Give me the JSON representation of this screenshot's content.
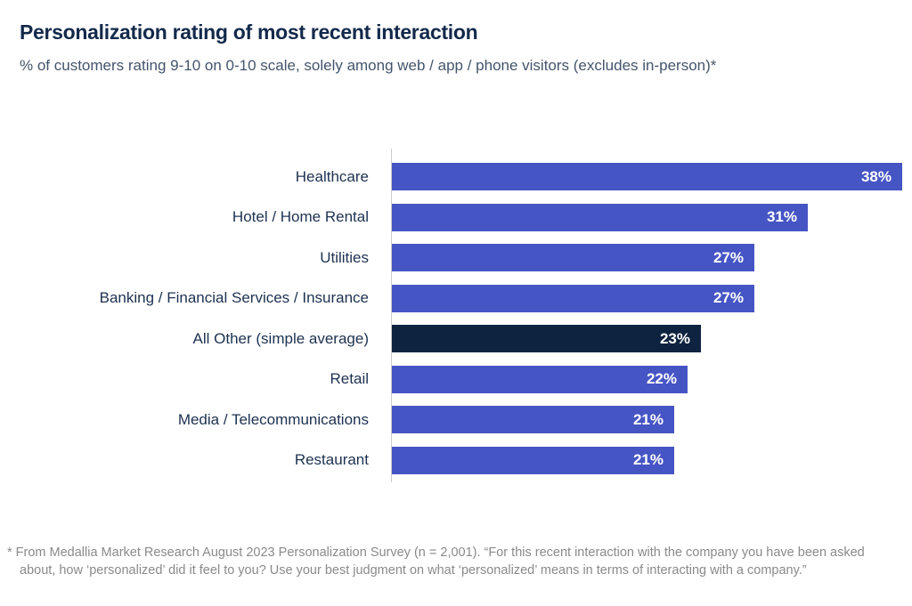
{
  "header": {
    "title": "Personalization rating of most recent interaction",
    "subtitle": "% of customers rating 9-10 on 0-10 scale, solely among web / app / phone visitors (excludes in-person)*"
  },
  "chart_data": {
    "type": "bar",
    "orientation": "horizontal",
    "categories": [
      "Healthcare",
      "Hotel / Home Rental",
      "Utilities",
      "Banking / Financial Services / Insurance",
      "All Other (simple average)",
      "Retail",
      "Media / Telecommunications",
      "Restaurant"
    ],
    "values": [
      38,
      31,
      27,
      27,
      23,
      22,
      21,
      21
    ],
    "value_labels": [
      "38%",
      "31%",
      "27%",
      "27%",
      "23%",
      "22%",
      "21%",
      "21%"
    ],
    "highlight_index": 4,
    "bar_color": "#4655c4",
    "highlight_color": "#0e2340",
    "value_label_color": "#ffffff",
    "axis_line_color": "#cccccc",
    "xlim": [
      0,
      39
    ],
    "grid": false,
    "legend": "none",
    "title": "Personalization rating of most recent interaction",
    "xlabel": "",
    "ylabel": ""
  },
  "footnote": "* From Medallia Market Research August 2023 Personalization Survey (n = 2,001). “For this recent interaction with the company you have been asked about, how ‘personalized’ did it feel to you? Use your best judgment on what ‘personalized’ means in terms of interacting with a company.”"
}
